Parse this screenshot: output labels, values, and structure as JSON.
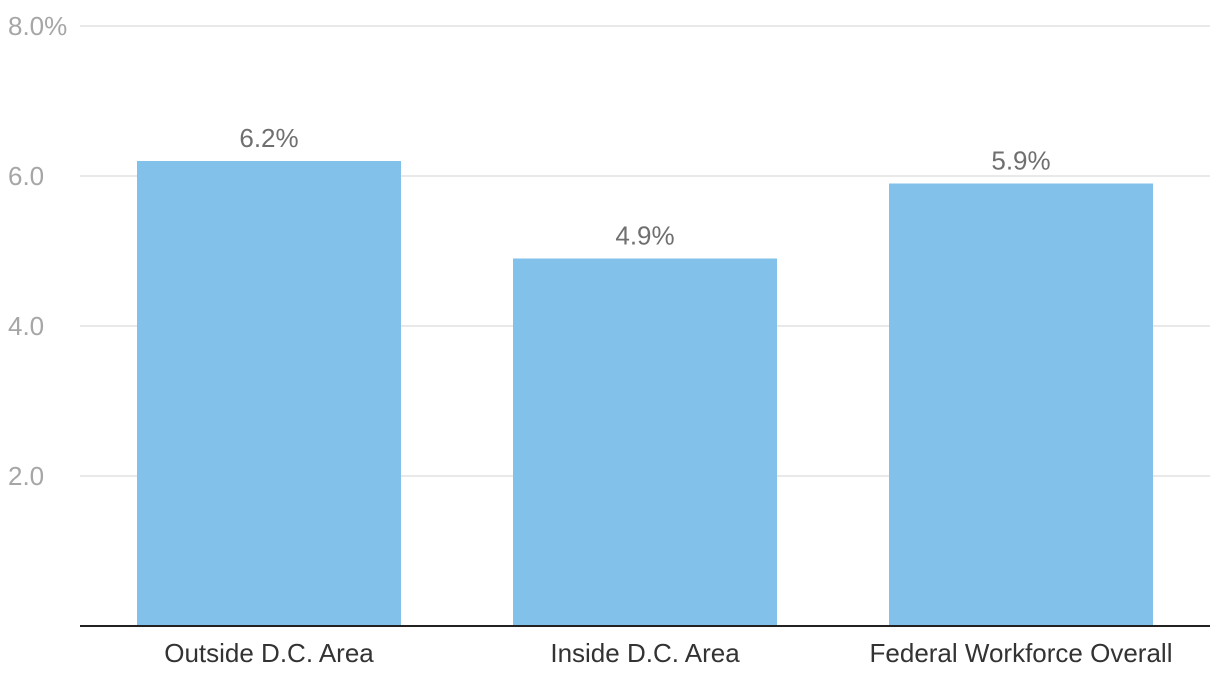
{
  "chart_data": {
    "type": "bar",
    "categories": [
      "Outside D.C. Area",
      "Inside D.C. Area",
      "Federal Workforce Overall"
    ],
    "values": [
      6.2,
      4.9,
      5.9
    ],
    "data_labels": [
      "6.2%",
      "4.9%",
      "5.9%"
    ],
    "y_ticks": [
      2,
      4,
      6,
      8
    ],
    "y_tick_labels": [
      "2.0",
      "4.0",
      "6.0",
      "8.0%"
    ],
    "ylim": [
      0,
      8
    ],
    "grid": true,
    "bar_color": "#81c1ea",
    "title": "",
    "xlabel": "",
    "ylabel": ""
  }
}
